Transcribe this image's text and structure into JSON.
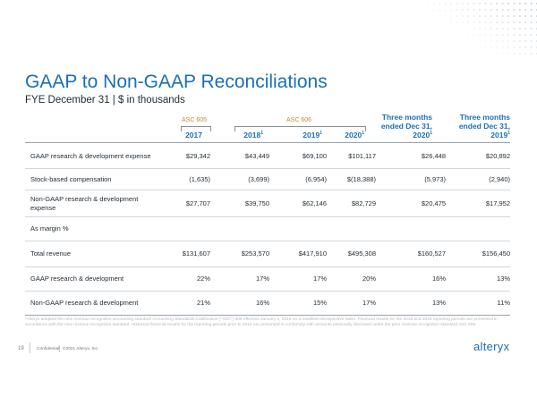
{
  "title": "GAAP to Non-GAAP Reconciliations",
  "subtitle": "FYE December 31 | $ in thousands",
  "asc_labels": {
    "asc605": "ASC 605",
    "asc606": "ASC 606"
  },
  "columns": [
    {
      "line1": "",
      "line2": "2017",
      "sup": ""
    },
    {
      "line1": "",
      "line2": "2018",
      "sup": "1"
    },
    {
      "line1": "",
      "line2": "2019",
      "sup": "1"
    },
    {
      "line1": "",
      "line2": "2020",
      "sup": "1"
    },
    {
      "line1": "Three months",
      "line1b": "ended Dec 31,",
      "line2": "2020",
      "sup": "1"
    },
    {
      "line1": "Three months",
      "line1b": "ended Dec 31,",
      "line2": "2019",
      "sup": "1"
    }
  ],
  "rows": [
    {
      "label": "GAAP research & development expense",
      "values": [
        "$29,342",
        "$43,449",
        "$69,100",
        "$101,117",
        "$26,448",
        "$20,892"
      ]
    },
    {
      "label": "Stock-based compensation",
      "values": [
        "(1,635)",
        "(3,699)",
        "(6,954)",
        "$(18,388)",
        "(5,973)",
        "(2,940)"
      ]
    },
    {
      "label": "Non-GAAP research & development expense",
      "values": [
        "$27,707",
        "$39,750",
        "$62,146",
        "$82,729",
        "$20,475",
        "$17,952"
      ]
    },
    {
      "label": "As margin %",
      "values": [
        "",
        "",
        "",
        "",
        "",
        ""
      ]
    },
    {
      "label": "Total revenue",
      "values": [
        "$131,607",
        "$253,570",
        "$417,910",
        "$495,308",
        "$160,527",
        "$156,450"
      ]
    },
    {
      "label": "GAAP research & development",
      "values": [
        "22%",
        "17%",
        "17%",
        "20%",
        "16%",
        "13%"
      ]
    },
    {
      "label": "Non-GAAP research & development",
      "values": [
        "21%",
        "16%",
        "15%",
        "17%",
        "13%",
        "11%"
      ]
    }
  ],
  "footnote": "¹Alteryx adopted the new revenue recognition accounting standard Accounting Standards Codification (\"ASC\") 606 effective January 1, 2018 on a modified retrospective basis. Financial results for the 2018 and 2019 reporting periods are presented in accordance with the new revenue recognition standard. Historical financial results for the reporting periods prior to 2018 are presented in conformity with amounts previously disclosed under the prior revenue recognition standard ASC 605.",
  "footer": {
    "page_number": "19",
    "confidential": "Confidential",
    "copyright": "©2021 Alteryx, Inc."
  },
  "logo_text": "alteryx",
  "colors": {
    "accent": "#1b6fb5",
    "asc_label": "#c9892b",
    "text": "#1f2a33"
  }
}
